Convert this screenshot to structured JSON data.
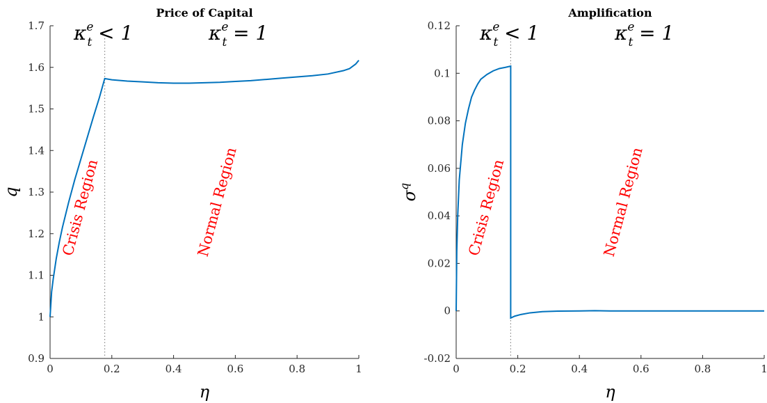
{
  "chart_data": [
    {
      "type": "line",
      "title": "Price of Capital",
      "xlabel": "η",
      "ylabel": "q",
      "xlim": [
        0,
        1
      ],
      "ylim": [
        0.9,
        1.7
      ],
      "xticks": [
        0,
        0.2,
        0.4,
        0.6,
        0.8,
        1
      ],
      "xtick_labels": [
        "0",
        "0.2",
        "0.4",
        "0.6",
        "0.8",
        "1"
      ],
      "yticks": [
        0.9,
        1.0,
        1.1,
        1.2,
        1.3,
        1.4,
        1.5,
        1.6,
        1.7
      ],
      "ytick_labels": [
        "0.9",
        "1",
        "1.1",
        "1.2",
        "1.3",
        "1.4",
        "1.5",
        "1.6",
        "1.7"
      ],
      "grid": false,
      "boundary_x": 0.177,
      "line_color": "#0072bd",
      "series": [
        {
          "x": [
            0,
            0.005,
            0.01,
            0.02,
            0.03,
            0.04,
            0.05,
            0.06,
            0.08,
            0.1,
            0.12,
            0.14,
            0.16,
            0.177,
            0.2,
            0.25,
            0.3,
            0.35,
            0.4,
            0.45,
            0.5,
            0.55,
            0.6,
            0.65,
            0.7,
            0.75,
            0.8,
            0.85,
            0.9,
            0.95,
            0.97,
            0.99,
            1.0
          ],
          "y": [
            1.0,
            1.06,
            1.09,
            1.14,
            1.18,
            1.215,
            1.245,
            1.275,
            1.33,
            1.38,
            1.43,
            1.48,
            1.528,
            1.573,
            1.57,
            1.567,
            1.565,
            1.563,
            1.562,
            1.562,
            1.563,
            1.564,
            1.566,
            1.568,
            1.571,
            1.574,
            1.577,
            1.58,
            1.584,
            1.592,
            1.597,
            1.608,
            1.617
          ]
        }
      ],
      "annotations": {
        "left_kappa": {
          "base": "κ",
          "sup": "e",
          "sub": "t",
          "rel": "< 1"
        },
        "right_kappa": {
          "base": "κ",
          "sup": "e",
          "sub": "t",
          "rel": "= 1"
        },
        "crisis": "Crisis Region",
        "normal": "Normal Region"
      }
    },
    {
      "type": "line",
      "title": "Amplification",
      "xlabel": "η",
      "ylabel": "σ",
      "ylabel_sup": "q",
      "xlim": [
        0,
        1
      ],
      "ylim": [
        -0.02,
        0.12
      ],
      "xticks": [
        0,
        0.2,
        0.4,
        0.6,
        0.8,
        1
      ],
      "xtick_labels": [
        "0",
        "0.2",
        "0.4",
        "0.6",
        "0.8",
        "1"
      ],
      "yticks": [
        -0.02,
        0,
        0.02,
        0.04,
        0.06,
        0.08,
        0.1,
        0.12
      ],
      "ytick_labels": [
        "-0.02",
        "0",
        "0.02",
        "0.04",
        "0.06",
        "0.08",
        "0.1",
        "0.12"
      ],
      "grid": false,
      "boundary_x": 0.177,
      "line_color": "#0072bd",
      "series": [
        {
          "x": [
            0,
            0.002,
            0.005,
            0.01,
            0.02,
            0.03,
            0.04,
            0.05,
            0.06,
            0.07,
            0.08,
            0.1,
            0.12,
            0.14,
            0.16,
            0.177,
            0.177,
            0.19,
            0.21,
            0.24,
            0.28,
            0.33,
            0.4,
            0.45,
            0.5,
            0.6,
            0.7,
            0.8,
            0.9,
            1.0
          ],
          "y": [
            0.0,
            0.025,
            0.04,
            0.055,
            0.07,
            0.079,
            0.085,
            0.09,
            0.093,
            0.0955,
            0.0975,
            0.0995,
            0.101,
            0.102,
            0.1025,
            0.103,
            -0.003,
            -0.0022,
            -0.0015,
            -0.0008,
            -0.0003,
            -0.0001,
            0.0,
            0.0001,
            0.0,
            0.0,
            0.0,
            0.0,
            0.0,
            0.0
          ]
        }
      ],
      "annotations": {
        "left_kappa": {
          "base": "κ",
          "sup": "e",
          "sub": "t",
          "rel": "< 1"
        },
        "right_kappa": {
          "base": "κ",
          "sup": "e",
          "sub": "t",
          "rel": "= 1"
        },
        "crisis": "Crisis Region",
        "normal": "Normal Region"
      }
    }
  ]
}
